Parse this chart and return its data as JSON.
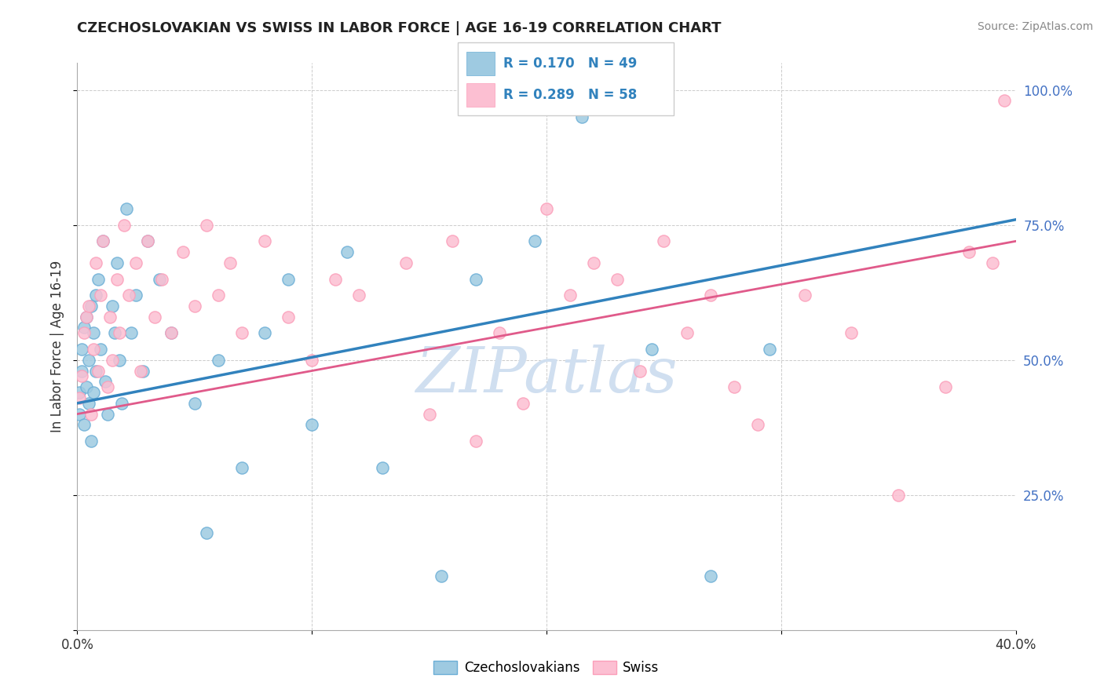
{
  "title": "CZECHOSLOVAKIAN VS SWISS IN LABOR FORCE | AGE 16-19 CORRELATION CHART",
  "source": "Source: ZipAtlas.com",
  "ylabel": "In Labor Force | Age 16-19",
  "xlim": [
    0.0,
    0.4
  ],
  "ylim": [
    0.0,
    1.05
  ],
  "blue_color": "#9ecae1",
  "blue_edge_color": "#6baed6",
  "pink_color": "#fcbfd2",
  "pink_edge_color": "#fb9eb9",
  "blue_line_color": "#3182bd",
  "pink_line_color": "#e05a8a",
  "R_blue": 0.17,
  "N_blue": 49,
  "R_pink": 0.289,
  "N_pink": 58,
  "watermark": "ZIPatlas",
  "watermark_color": "#d0dff0",
  "blue_scatter_x": [
    0.001,
    0.001,
    0.002,
    0.002,
    0.003,
    0.003,
    0.004,
    0.004,
    0.005,
    0.005,
    0.006,
    0.006,
    0.007,
    0.007,
    0.008,
    0.008,
    0.009,
    0.01,
    0.011,
    0.012,
    0.013,
    0.015,
    0.016,
    0.017,
    0.018,
    0.019,
    0.021,
    0.023,
    0.025,
    0.028,
    0.03,
    0.035,
    0.04,
    0.05,
    0.055,
    0.06,
    0.07,
    0.08,
    0.09,
    0.1,
    0.115,
    0.13,
    0.155,
    0.17,
    0.195,
    0.215,
    0.245,
    0.27,
    0.295
  ],
  "blue_scatter_y": [
    0.44,
    0.4,
    0.48,
    0.52,
    0.56,
    0.38,
    0.45,
    0.58,
    0.5,
    0.42,
    0.6,
    0.35,
    0.55,
    0.44,
    0.62,
    0.48,
    0.65,
    0.52,
    0.72,
    0.46,
    0.4,
    0.6,
    0.55,
    0.68,
    0.5,
    0.42,
    0.78,
    0.55,
    0.62,
    0.48,
    0.72,
    0.65,
    0.55,
    0.42,
    0.18,
    0.5,
    0.3,
    0.55,
    0.65,
    0.38,
    0.7,
    0.3,
    0.1,
    0.65,
    0.72,
    0.95,
    0.52,
    0.1,
    0.52
  ],
  "pink_scatter_x": [
    0.001,
    0.002,
    0.003,
    0.004,
    0.005,
    0.006,
    0.007,
    0.008,
    0.009,
    0.01,
    0.011,
    0.013,
    0.014,
    0.015,
    0.017,
    0.018,
    0.02,
    0.022,
    0.025,
    0.027,
    0.03,
    0.033,
    0.036,
    0.04,
    0.045,
    0.05,
    0.055,
    0.06,
    0.065,
    0.07,
    0.08,
    0.09,
    0.1,
    0.11,
    0.12,
    0.14,
    0.15,
    0.16,
    0.17,
    0.18,
    0.19,
    0.2,
    0.21,
    0.22,
    0.23,
    0.24,
    0.25,
    0.26,
    0.27,
    0.28,
    0.29,
    0.31,
    0.33,
    0.35,
    0.37,
    0.38,
    0.39,
    0.395
  ],
  "pink_scatter_y": [
    0.43,
    0.47,
    0.55,
    0.58,
    0.6,
    0.4,
    0.52,
    0.68,
    0.48,
    0.62,
    0.72,
    0.45,
    0.58,
    0.5,
    0.65,
    0.55,
    0.75,
    0.62,
    0.68,
    0.48,
    0.72,
    0.58,
    0.65,
    0.55,
    0.7,
    0.6,
    0.75,
    0.62,
    0.68,
    0.55,
    0.72,
    0.58,
    0.5,
    0.65,
    0.62,
    0.68,
    0.4,
    0.72,
    0.35,
    0.55,
    0.42,
    0.78,
    0.62,
    0.68,
    0.65,
    0.48,
    0.72,
    0.55,
    0.62,
    0.45,
    0.38,
    0.62,
    0.55,
    0.25,
    0.45,
    0.7,
    0.68,
    0.98
  ],
  "line_blue_x0": 0.0,
  "line_blue_y0": 0.42,
  "line_blue_x1": 0.4,
  "line_blue_y1": 0.76,
  "line_pink_x0": 0.0,
  "line_pink_y0": 0.4,
  "line_pink_x1": 0.4,
  "line_pink_y1": 0.72
}
